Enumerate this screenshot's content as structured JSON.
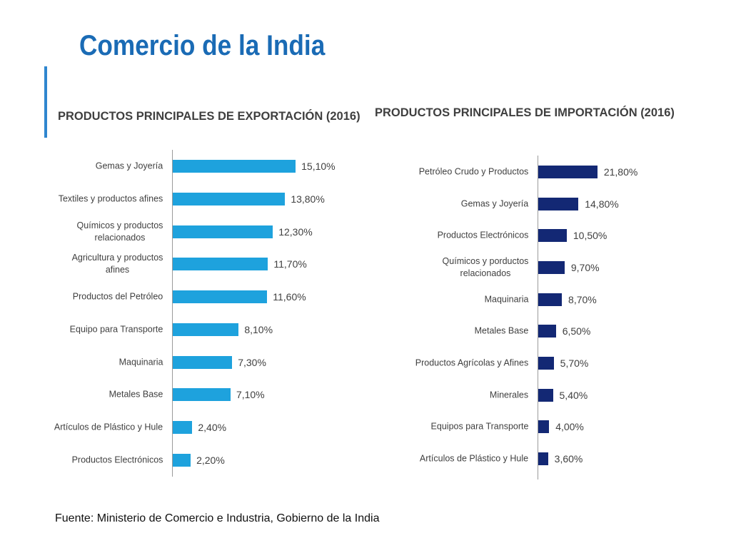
{
  "slide": {
    "title": "Comercio de la India",
    "footer": "Fuente: Ministerio de Comercio e Industria, Gobierno de la India"
  },
  "colors": {
    "title": "#1a6bb5",
    "accent_bar": "#2f86cf"
  },
  "chart_data": [
    {
      "type": "bar",
      "orientation": "horizontal",
      "title": "PRODUCTOS PRINCIPALES DE EXPORTACIÓN (2016)",
      "categories": [
        "Gemas y Joyería",
        "Textiles y productos afines",
        "Químicos y productos relacionados",
        "Agricultura y productos afines",
        "Productos del Petróleo",
        "Equipo para Transporte",
        "Maquinaria",
        "Metales Base",
        "Artículos de Plástico y Hule",
        "Productos Electrónicos"
      ],
      "values": [
        15.1,
        13.8,
        12.3,
        11.7,
        11.6,
        8.1,
        7.3,
        7.1,
        2.4,
        2.2
      ],
      "data_labels": [
        "15,10%",
        "13,80%",
        "12,30%",
        "11,70%",
        "11,60%",
        "8,10%",
        "7,30%",
        "7,10%",
        "2,40%",
        "2,20%"
      ],
      "color": "#1ea2dd",
      "grid": false,
      "legend": "none"
    },
    {
      "type": "bar",
      "orientation": "horizontal",
      "title": "PRODUCTOS PRINCIPALES DE IMPORTACIÓN (2016)",
      "categories": [
        "Petróleo Crudo y Productos",
        "Gemas y Joyería",
        "Productos Electrónicos",
        "Químicos y porductos relacionados",
        "Maquinaria",
        "Metales Base",
        "Productos Agrícolas y Afines",
        "Minerales",
        "Equipos para Transporte",
        "Artículos de Plástico y Hule"
      ],
      "values": [
        21.8,
        14.8,
        10.5,
        9.7,
        8.7,
        6.5,
        5.7,
        5.4,
        4.0,
        3.6
      ],
      "data_labels": [
        "21,80%",
        "14,80%",
        "10,50%",
        "9,70%",
        "8,70%",
        "6,50%",
        "5,70%",
        "5,40%",
        "4,00%",
        "3,60%"
      ],
      "color": "#132874",
      "grid": false,
      "legend": "none"
    }
  ]
}
